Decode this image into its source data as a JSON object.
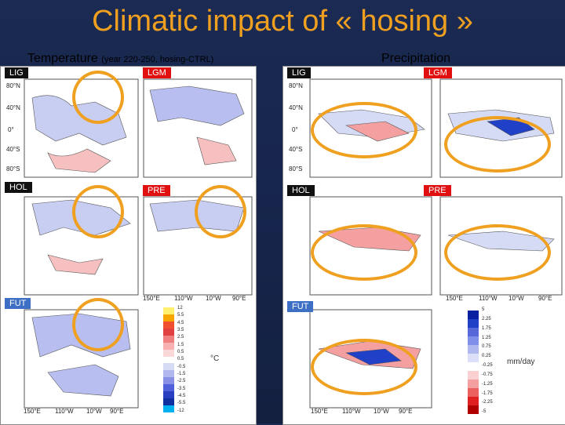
{
  "slide": {
    "title": "Climatic impact of « hosing »",
    "temperature_header": "Temperature",
    "temperature_sub": "(year 220-250, hosing-CTRL)",
    "precipitation_header": "Precipitation"
  },
  "panels": {
    "lig": "LIG",
    "lgm": "LGM",
    "hol": "HOL",
    "pre": "PRE",
    "fut": "FUT"
  },
  "lat_labels": [
    "80°N",
    "40°N",
    "0°",
    "40°S",
    "80°S"
  ],
  "lon_labels": [
    "150°E",
    "110°W",
    "10°W",
    "90°E"
  ],
  "temp_colorbar": {
    "unit": "°C",
    "ticks": [
      "12",
      "5.5",
      "4.5",
      "3.5",
      "2.5",
      "1.5",
      "0.5",
      "0.5",
      "-0.5",
      "-1.5",
      "-2.5",
      "-3.5",
      "-4.5",
      "-5.5",
      "-12"
    ],
    "colors": [
      "#fff070",
      "#f7a600",
      "#f05030",
      "#e04040",
      "#f08080",
      "#f8b0b0",
      "#fbd8d8",
      "#ffffff",
      "#d6dbf5",
      "#b0b8ef",
      "#8890e5",
      "#5060d8",
      "#2840c0",
      "#1030a0",
      "#00b0f0"
    ]
  },
  "precip_colorbar": {
    "unit": "mm/day",
    "ticks": [
      "5",
      "2.25",
      "1.75",
      "1.25",
      "0.75",
      "0.25",
      "-0.25",
      "-0.75",
      "-1.25",
      "-1.75",
      "-2.25",
      "-5"
    ],
    "colors": [
      "#0a20a0",
      "#2040c8",
      "#5868d8",
      "#8090e8",
      "#b0b8f0",
      "#dcdff8",
      "#ffffff",
      "#fbd0d0",
      "#f4a0a0",
      "#ec6060",
      "#e02020",
      "#b00000"
    ]
  }
}
